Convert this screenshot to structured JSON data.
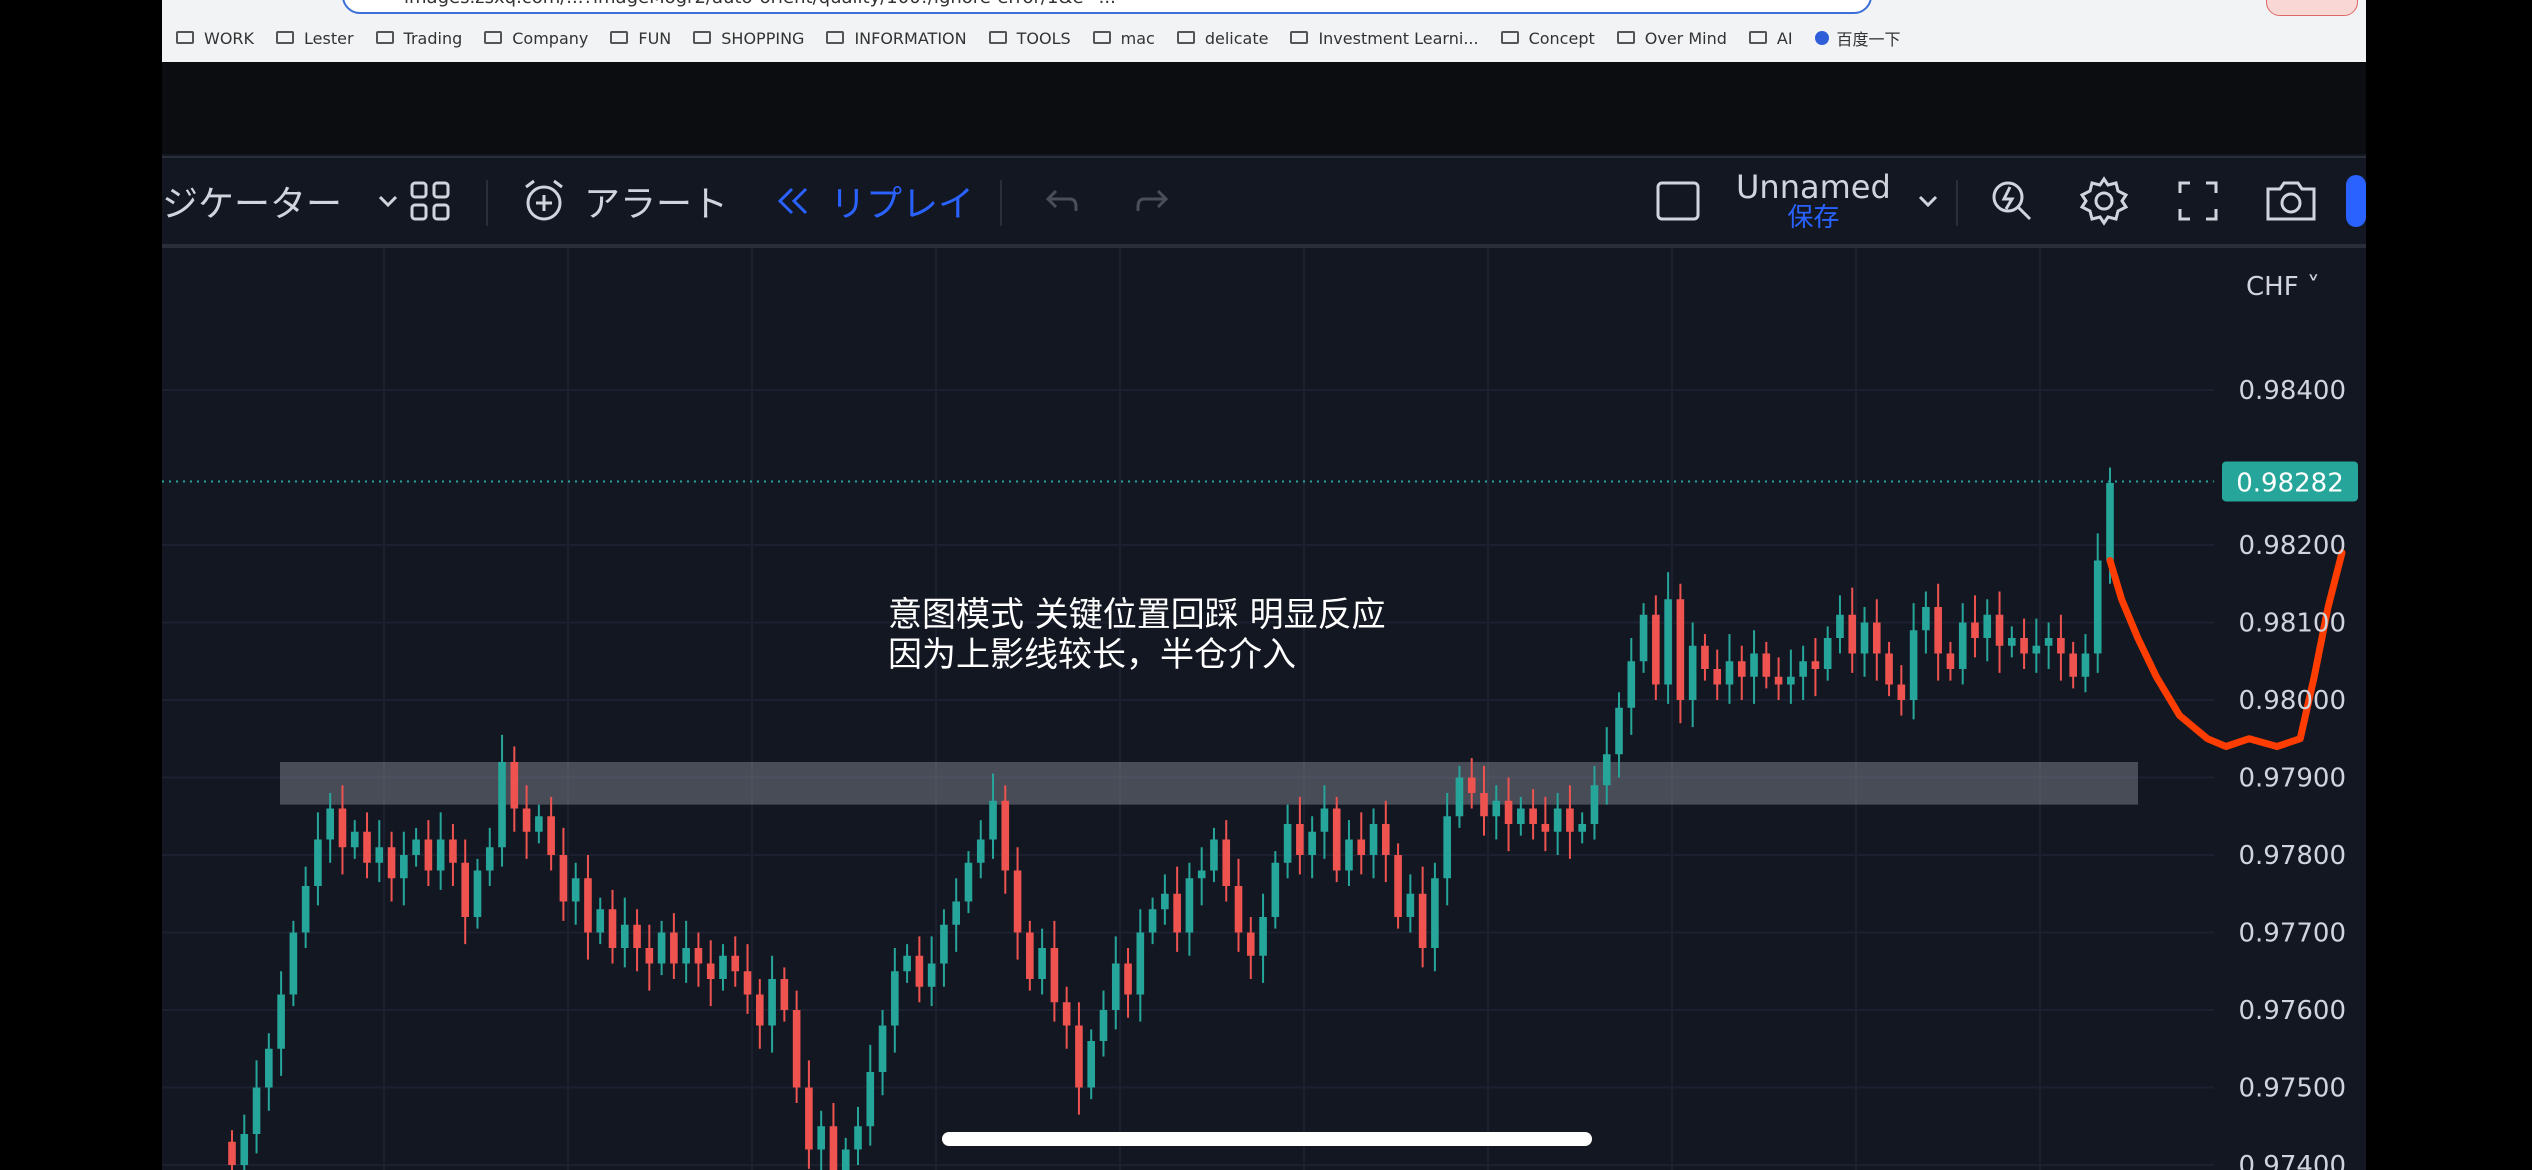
{
  "browser": {
    "url": "images.zsxq.com/...?imageMogr2/auto-orient/quality/100!/ignore-error/1&e=...",
    "bookmarks": [
      {
        "label": "WORK"
      },
      {
        "label": "Lester"
      },
      {
        "label": "Trading"
      },
      {
        "label": "Company"
      },
      {
        "label": "FUN"
      },
      {
        "label": "SHOPPING"
      },
      {
        "label": "INFORMATION"
      },
      {
        "label": "TOOLS"
      },
      {
        "label": "mac"
      },
      {
        "label": "delicate"
      },
      {
        "label": "Investment Learni..."
      },
      {
        "label": "Concept"
      },
      {
        "label": "Over Mind"
      },
      {
        "label": "AI"
      }
    ],
    "baidu_bookmark": "百度一下"
  },
  "toolbar": {
    "indicators_label": "ジケーター",
    "alert_label": "アラート",
    "replay_label": "リプレイ",
    "layout_name": "Unnamed",
    "save_label": "保存",
    "accent_color": "#2962ff"
  },
  "chart": {
    "currency": "CHF",
    "current_price": "0.98282",
    "current_price_color": "#26a69a",
    "annotation_line1": "意图模式 关键位置回踩 明显反应",
    "annotation_line2": "因为上影线较长，半仓介入",
    "up_color": "#26a69a",
    "down_color": "#ef5350",
    "drawing_color": "#ff3d00"
  },
  "chart_data": {
    "type": "candlestick",
    "ylim": [
      0.9738,
      0.9853
    ],
    "price_labels": [
      "0.98400",
      "0.98200",
      "0.98100",
      "0.98000",
      "0.97900",
      "0.97800",
      "0.97700",
      "0.97600",
      "0.97500",
      "0.97400"
    ],
    "price_label_values": [
      0.984,
      0.982,
      0.981,
      0.98,
      0.979,
      0.978,
      0.977,
      0.976,
      0.975,
      0.974
    ],
    "zone": {
      "from": 0.97865,
      "to": 0.9792
    },
    "closes": [
      0.974,
      0.9744,
      0.975,
      0.9755,
      0.9762,
      0.977,
      0.9776,
      0.9782,
      0.9786,
      0.9781,
      0.9783,
      0.9779,
      0.9781,
      0.9777,
      0.978,
      0.9782,
      0.9778,
      0.9782,
      0.9779,
      0.9772,
      0.9778,
      0.9781,
      0.9792,
      0.9786,
      0.9783,
      0.9785,
      0.978,
      0.9774,
      0.9777,
      0.977,
      0.9773,
      0.9768,
      0.9771,
      0.9768,
      0.9766,
      0.977,
      0.9766,
      0.9768,
      0.9766,
      0.9764,
      0.9767,
      0.9765,
      0.9762,
      0.9758,
      0.9764,
      0.976,
      0.975,
      0.9742,
      0.9745,
      0.9738,
      0.9742,
      0.9745,
      0.9752,
      0.9758,
      0.9765,
      0.9767,
      0.9763,
      0.9766,
      0.9771,
      0.9774,
      0.9779,
      0.9782,
      0.9787,
      0.9778,
      0.977,
      0.9764,
      0.9768,
      0.9761,
      0.9758,
      0.975,
      0.9756,
      0.976,
      0.9766,
      0.9762,
      0.977,
      0.9773,
      0.9775,
      0.977,
      0.9777,
      0.9778,
      0.9782,
      0.9776,
      0.977,
      0.9767,
      0.9772,
      0.9779,
      0.9784,
      0.978,
      0.9783,
      0.9786,
      0.9778,
      0.9782,
      0.978,
      0.9784,
      0.978,
      0.9772,
      0.9775,
      0.9768,
      0.9777,
      0.9785,
      0.979,
      0.9788,
      0.9785,
      0.9787,
      0.9784,
      0.9786,
      0.9784,
      0.9783,
      0.9786,
      0.9783,
      0.9784,
      0.9789,
      0.9793,
      0.9799,
      0.9805,
      0.9811,
      0.9802,
      0.9813,
      0.98,
      0.9807,
      0.9804,
      0.9802,
      0.9805,
      0.9803,
      0.9806,
      0.9803,
      0.9802,
      0.9803,
      0.9805,
      0.9804,
      0.9808,
      0.9811,
      0.9806,
      0.981,
      0.9806,
      0.9802,
      0.98,
      0.9809,
      0.9812,
      0.9806,
      0.9804,
      0.981,
      0.9808,
      0.9811,
      0.9807,
      0.9808,
      0.9806,
      0.9807,
      0.9808,
      0.9806,
      0.9803,
      0.9806,
      0.9818,
      0.9828
    ],
    "redline": [
      [
        0.9818,
        0
      ],
      [
        0.9813,
        0.05
      ],
      [
        0.9808,
        0.12
      ],
      [
        0.9803,
        0.2
      ],
      [
        0.9798,
        0.3
      ],
      [
        0.9795,
        0.42
      ],
      [
        0.9794,
        0.5
      ],
      [
        0.9795,
        0.6
      ],
      [
        0.9794,
        0.72
      ],
      [
        0.9795,
        0.82
      ],
      [
        0.9803,
        0.88
      ],
      [
        0.9812,
        0.94
      ],
      [
        0.9819,
        1.0
      ]
    ]
  }
}
